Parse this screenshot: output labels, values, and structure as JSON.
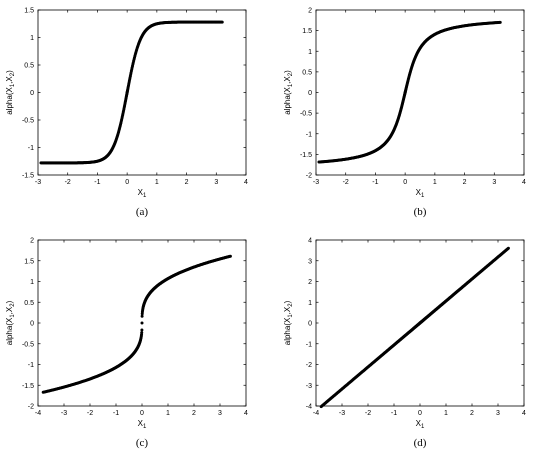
{
  "chart_data": [
    {
      "id": "a",
      "type": "scatter",
      "panel_label": "(a)",
      "xlabel": "X",
      "xlabel_sub": "1",
      "ylabel": "alpha(X",
      "ylabel_parts": [
        "alpha(X",
        "1",
        ",X",
        "2",
        ")"
      ],
      "xlim": [
        -3,
        4
      ],
      "ylim": [
        -1.5,
        1.5
      ],
      "xticks": [
        "-3",
        "-2",
        "-1",
        "0",
        "1",
        "2",
        "3",
        "4"
      ],
      "yticks": [
        "-1.5",
        "-1",
        "-0.5",
        "0",
        "0.5",
        "1",
        "1.5"
      ],
      "curve": {
        "kind": "tanh",
        "amplitude": 1.28,
        "scale": 2.2,
        "x_min": -2.9,
        "x_max": 3.2
      }
    },
    {
      "id": "b",
      "type": "scatter",
      "panel_label": "(b)",
      "xlabel": "X",
      "xlabel_sub": "1",
      "ylabel_parts": [
        "alpha(X",
        "1",
        ",X",
        "2",
        ")"
      ],
      "xlim": [
        -3,
        4
      ],
      "ylim": [
        -2,
        2
      ],
      "xticks": [
        "-3",
        "-2",
        "-1",
        "0",
        "1",
        "2",
        "3",
        "4"
      ],
      "yticks": [
        "-2",
        "-1.5",
        "-1",
        "-0.5",
        "0",
        "0.5",
        "1",
        "1.5",
        "2"
      ],
      "curve": {
        "kind": "atan",
        "amplitude": 1.84,
        "scale": 2.6,
        "x_min": -2.9,
        "x_max": 3.2
      }
    },
    {
      "id": "c",
      "type": "scatter",
      "panel_label": "(c)",
      "xlabel": "X",
      "xlabel_sub": "1",
      "ylabel_parts": [
        "alpha(X",
        "1",
        ",X",
        "2",
        ")"
      ],
      "xlim": [
        -4,
        4
      ],
      "ylim": [
        -2,
        2
      ],
      "xticks": [
        "-4",
        "-3",
        "-2",
        "-1",
        "0",
        "1",
        "2",
        "3",
        "4"
      ],
      "yticks": [
        "-2",
        "-1.5",
        "-1",
        "-0.5",
        "0",
        "0.5",
        "1",
        "1.5",
        "2"
      ],
      "curve": {
        "kind": "cbrt",
        "coefficient": 1.07,
        "x_min": -3.8,
        "x_max": 3.4
      }
    },
    {
      "id": "d",
      "type": "scatter",
      "panel_label": "(d)",
      "xlabel": "X",
      "xlabel_sub": "1",
      "ylabel_parts": [
        "alpha(X",
        "1",
        ",X",
        "2",
        ")"
      ],
      "xlim": [
        -4,
        4
      ],
      "ylim": [
        -4,
        4
      ],
      "xticks": [
        "-4",
        "-3",
        "-2",
        "-1",
        "0",
        "1",
        "2",
        "3",
        "4"
      ],
      "yticks": [
        "-4",
        "-3",
        "-2",
        "-1",
        "0",
        "1",
        "2",
        "3",
        "4"
      ],
      "curve": {
        "kind": "linear",
        "slope": 1.06,
        "x_min": -3.8,
        "x_max": 3.4
      }
    }
  ]
}
